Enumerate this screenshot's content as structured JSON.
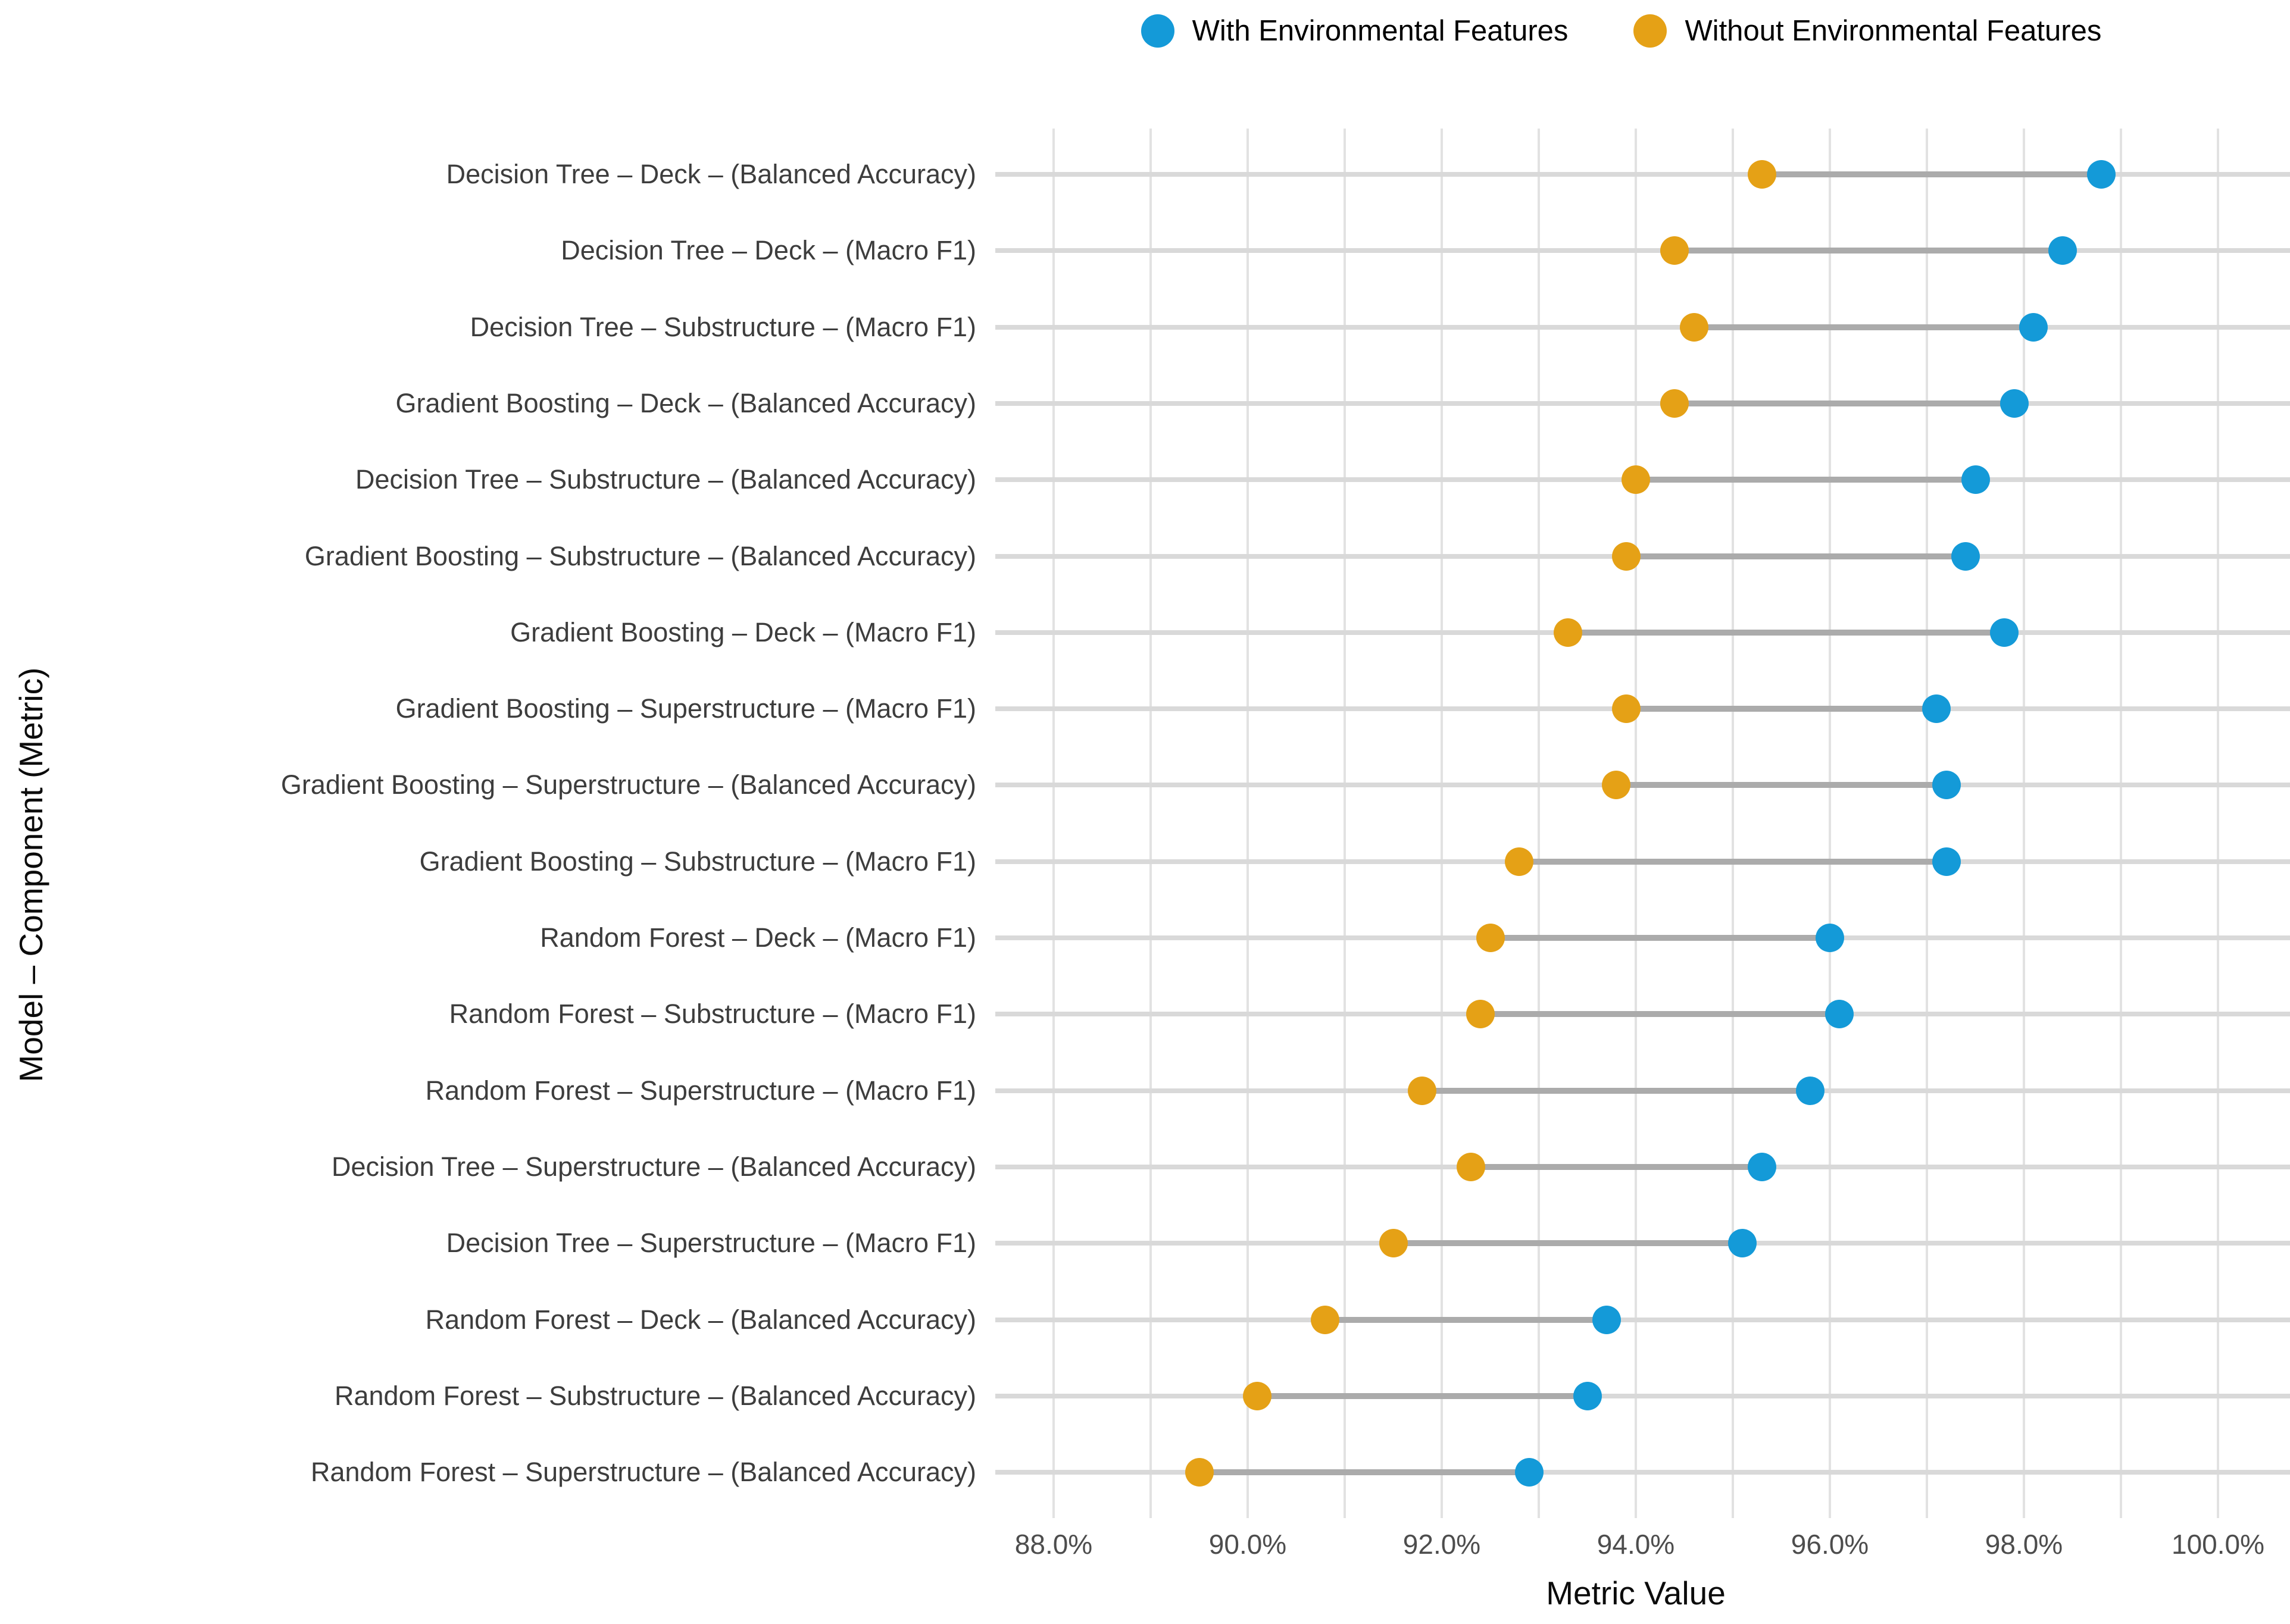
{
  "legend": {
    "items": [
      {
        "label": "With Environmental Features",
        "color": "#149AD8"
      },
      {
        "label": "Without Environmental Features",
        "color": "#E5A116"
      }
    ]
  },
  "axes": {
    "x_title": "Metric Value",
    "y_title": "Model – Component (Metric)",
    "x_tick_labels": [
      "88.0%",
      "90.0%",
      "92.0%",
      "94.0%",
      "96.0%",
      "98.0%",
      "100.0%"
    ],
    "x_tick_values": [
      88,
      90,
      92,
      94,
      96,
      98,
      100
    ]
  },
  "colors": {
    "with_env": "#149AD8",
    "without_env": "#E5A116",
    "connector": "#ABABAB",
    "row_guide": "#D9D9D9",
    "gridline": "#E2E2E2"
  },
  "chart_data": {
    "type": "dumbbell",
    "orientation": "horizontal",
    "title": "",
    "xlabel": "Metric Value",
    "ylabel": "Model – Component (Metric)",
    "xlim": [
      87.4,
      100.6
    ],
    "x_unit": "percent",
    "grid": "vertical gridlines every 1%, no horizontal gridlines",
    "legend_position": "top-center",
    "series": [
      {
        "name": "With Environmental Features",
        "color": "#149AD8",
        "key": "with_env"
      },
      {
        "name": "Without Environmental Features",
        "color": "#E5A116",
        "key": "without_env"
      }
    ],
    "rows": [
      {
        "label": "Decision Tree – Deck – (Balanced Accuracy)",
        "with_env": 98.8,
        "without_env": 95.3
      },
      {
        "label": "Decision Tree – Deck – (Macro F1)",
        "with_env": 98.4,
        "without_env": 94.4
      },
      {
        "label": "Decision Tree – Substructure – (Macro F1)",
        "with_env": 98.1,
        "without_env": 94.6
      },
      {
        "label": "Gradient Boosting – Deck – (Balanced Accuracy)",
        "with_env": 97.9,
        "without_env": 94.4
      },
      {
        "label": "Decision Tree – Substructure – (Balanced Accuracy)",
        "with_env": 97.5,
        "without_env": 94.0
      },
      {
        "label": "Gradient Boosting – Substructure – (Balanced Accuracy)",
        "with_env": 97.4,
        "without_env": 93.9
      },
      {
        "label": "Gradient Boosting – Deck – (Macro F1)",
        "with_env": 97.8,
        "without_env": 93.3
      },
      {
        "label": "Gradient Boosting – Superstructure – (Macro F1)",
        "with_env": 97.1,
        "without_env": 93.9
      },
      {
        "label": "Gradient Boosting – Superstructure – (Balanced Accuracy)",
        "with_env": 97.2,
        "without_env": 93.8
      },
      {
        "label": "Gradient Boosting – Substructure – (Macro F1)",
        "with_env": 97.2,
        "without_env": 92.8
      },
      {
        "label": "Random Forest – Deck – (Macro F1)",
        "with_env": 96.0,
        "without_env": 92.5
      },
      {
        "label": "Random Forest – Substructure – (Macro F1)",
        "with_env": 96.1,
        "without_env": 92.4
      },
      {
        "label": "Random Forest – Superstructure – (Macro F1)",
        "with_env": 95.8,
        "without_env": 91.8
      },
      {
        "label": "Decision Tree – Superstructure – (Balanced Accuracy)",
        "with_env": 95.3,
        "without_env": 92.3
      },
      {
        "label": "Decision Tree – Superstructure – (Macro F1)",
        "with_env": 95.1,
        "without_env": 91.5
      },
      {
        "label": "Random Forest – Deck – (Balanced Accuracy)",
        "with_env": 93.7,
        "without_env": 90.8
      },
      {
        "label": "Random Forest – Substructure – (Balanced Accuracy)",
        "with_env": 93.5,
        "without_env": 90.1
      },
      {
        "label": "Random Forest – Superstructure – (Balanced Accuracy)",
        "with_env": 92.9,
        "without_env": 89.5
      }
    ]
  }
}
